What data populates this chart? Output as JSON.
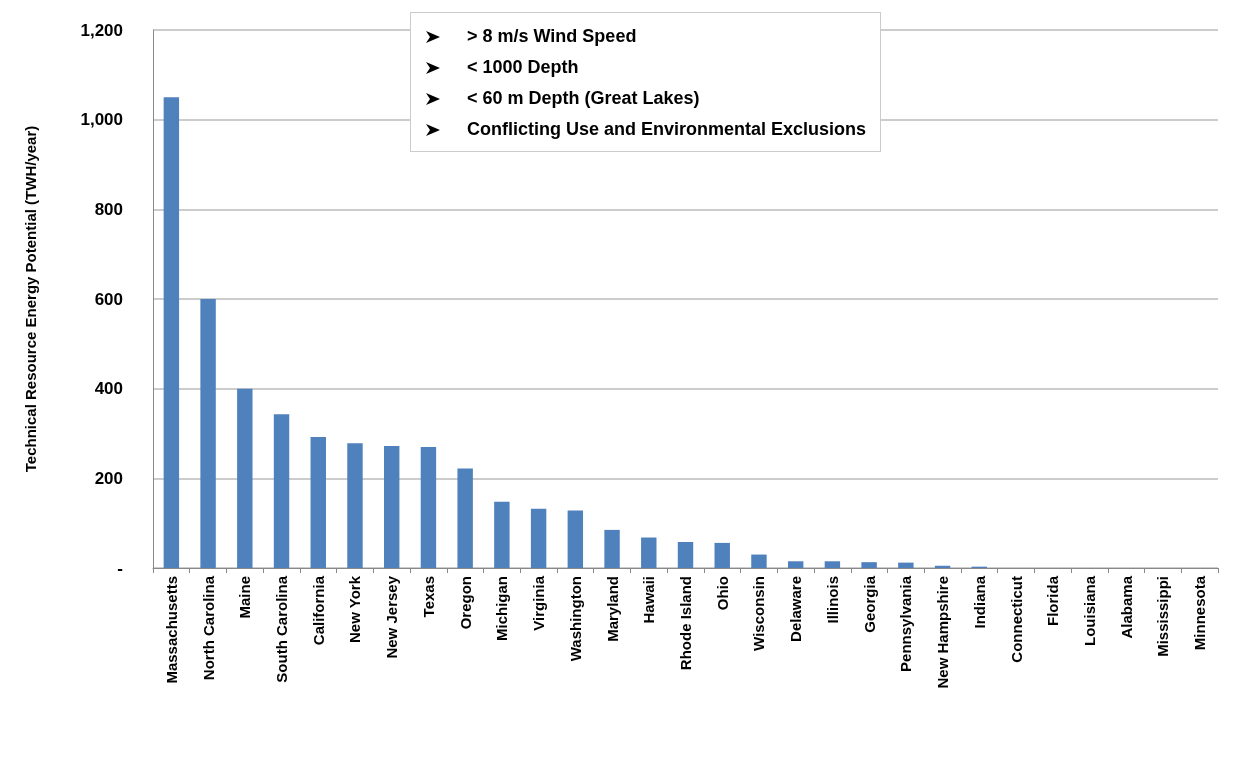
{
  "chart_data": {
    "type": "bar",
    "ylabel": "Technical Resource Energy Potential (TWH/year)",
    "categories": [
      "Massachusetts",
      "North Carolina",
      "Maine",
      "South Carolina",
      "California",
      "New York",
      "New Jersey",
      "Texas",
      "Oregon",
      "Michigan",
      "Virginia",
      "Washington",
      "Maryland",
      "Hawaii",
      "Rhode Island",
      "Ohio",
      "Wisconsin",
      "Delaware",
      "Illinois",
      "Georgia",
      "Pennsylvania",
      "New Hampshire",
      "Indiana",
      "Connecticut",
      "Florida",
      "Louisiana",
      "Alabama",
      "Mississippi",
      "Minnesota"
    ],
    "values": [
      1050,
      600,
      400,
      343,
      292,
      278,
      272,
      270,
      222,
      148,
      132,
      128,
      85,
      68,
      58,
      56,
      30,
      15,
      15,
      13,
      12,
      5,
      3,
      0,
      0,
      0,
      0,
      0,
      0
    ],
    "color": "#4f81bd",
    "ylim": [
      0,
      1200
    ],
    "yticks": [
      {
        "value": 0,
        "label": "-"
      },
      200,
      400,
      600,
      800,
      {
        "value": 1000,
        "label": "1,000"
      },
      {
        "value": 1200,
        "label": "1,200"
      }
    ],
    "grid": "y",
    "annotations": [
      "> 8 m/s Wind Speed",
      "< 1000 Depth",
      "< 60 m Depth (Great Lakes)",
      "Conflicting Use and Environmental Exclusions"
    ]
  }
}
